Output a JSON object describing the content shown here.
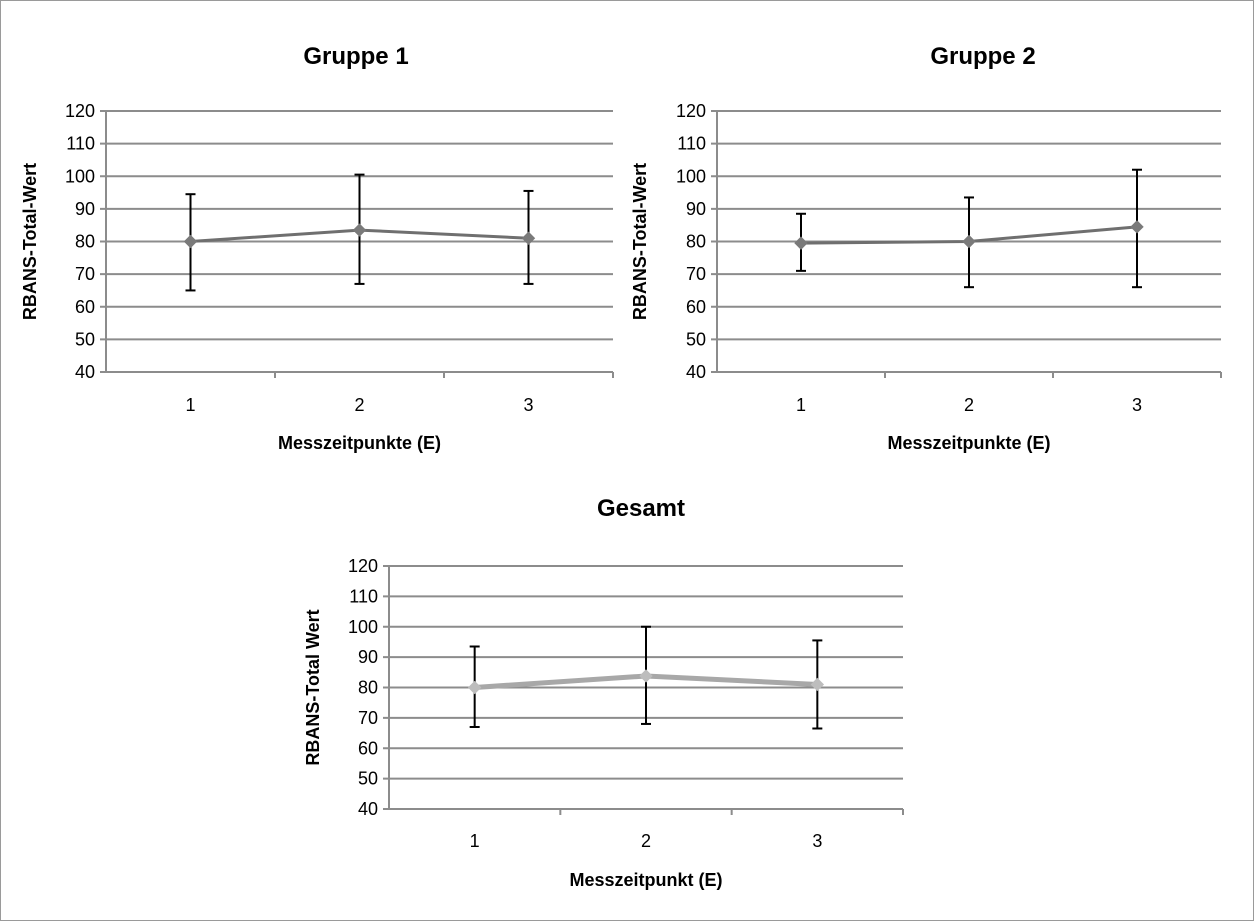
{
  "chart_data": [
    {
      "type": "line",
      "title": "Gruppe 1",
      "xlabel": "Messzeitpunkte (E)",
      "ylabel": "RBANS-Total-Wert",
      "categories": [
        "1",
        "2",
        "3"
      ],
      "ylim": [
        40,
        120
      ],
      "yticks": [
        40,
        50,
        60,
        70,
        80,
        90,
        100,
        110,
        120
      ],
      "grid": true,
      "series": [
        {
          "values": [
            80,
            83.5,
            81
          ],
          "error_low": [
            65,
            67,
            67
          ],
          "error_high": [
            94.5,
            100.5,
            95.5
          ]
        }
      ],
      "colors": {
        "line": "#6f6f6f",
        "marker": "#7a7a7a"
      }
    },
    {
      "type": "line",
      "title": "Gruppe 2",
      "xlabel": "Messzeitpunkte (E)",
      "ylabel": "RBANS-Total-Wert",
      "categories": [
        "1",
        "2",
        "3"
      ],
      "ylim": [
        40,
        120
      ],
      "yticks": [
        40,
        50,
        60,
        70,
        80,
        90,
        100,
        110,
        120
      ],
      "grid": true,
      "series": [
        {
          "values": [
            79.5,
            80,
            84.5
          ],
          "error_low": [
            71,
            66,
            66
          ],
          "error_high": [
            88.5,
            93.5,
            102
          ]
        }
      ],
      "colors": {
        "line": "#6f6f6f",
        "marker": "#7a7a7a"
      }
    },
    {
      "type": "line",
      "title": "Gesamt",
      "xlabel": "Messzeitpunkt (E)",
      "ylabel": "RBANS-Total Wert",
      "categories": [
        "1",
        "2",
        "3"
      ],
      "ylim": [
        40,
        120
      ],
      "yticks": [
        40,
        50,
        60,
        70,
        80,
        90,
        100,
        110,
        120
      ],
      "grid": true,
      "series": [
        {
          "values": [
            80,
            83.8,
            81
          ],
          "error_low": [
            67,
            68,
            66.5
          ],
          "error_high": [
            93.5,
            100,
            95.5
          ]
        }
      ],
      "colors": {
        "line": "#a8a8a8",
        "marker": "#bdbdbd"
      }
    }
  ]
}
